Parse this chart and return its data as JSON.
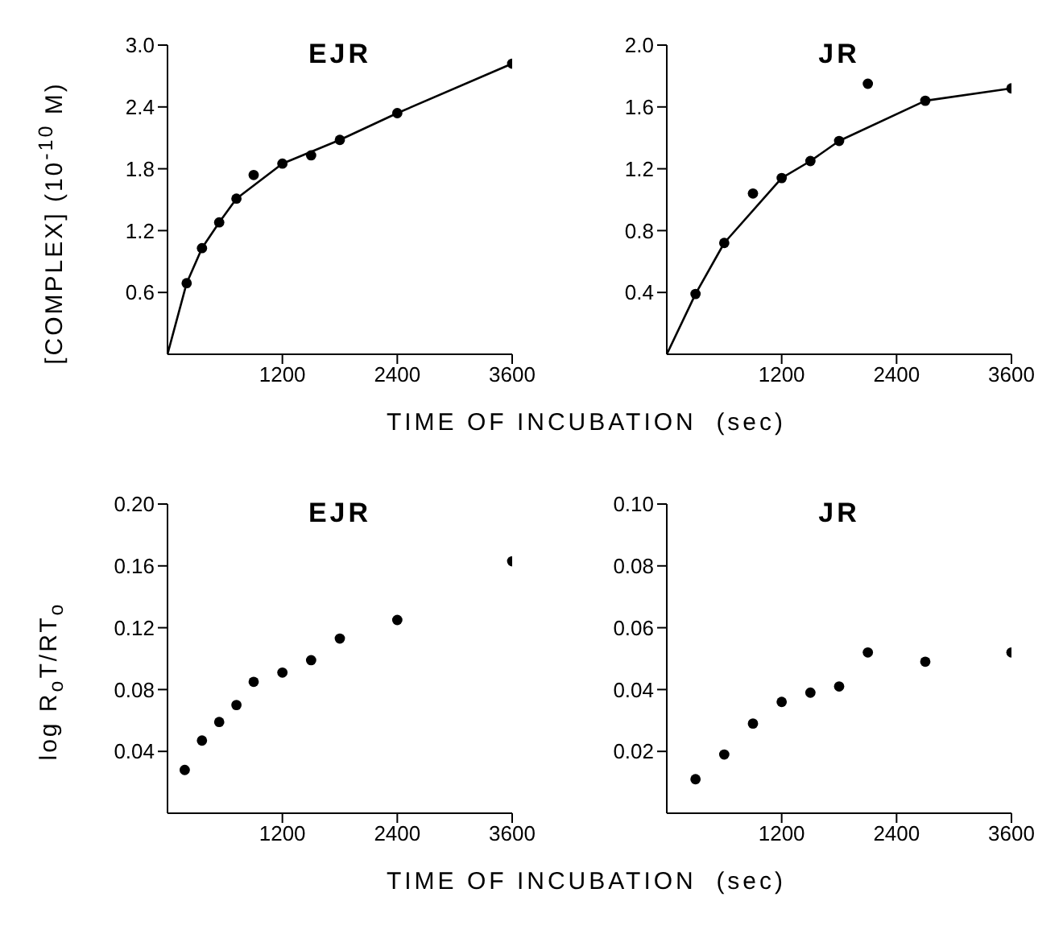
{
  "chart_data": [
    {
      "type": "scatter",
      "title": "EJR",
      "ylabel": "[COMPLEX]  (10$^{-10}$ M)",
      "xlabel": "TIME OF INCUBATION  (sec)",
      "xlim": [
        0,
        3600
      ],
      "xticks": [
        1200,
        2400,
        3600
      ],
      "ylim": [
        0,
        3.0
      ],
      "yticks": [
        0.6,
        1.2,
        1.8,
        2.4,
        {
          "value": 3,
          "label": "3.0"
        }
      ],
      "grid": false,
      "series": [
        {
          "type": "scatter",
          "color": "#000000",
          "marker": "circle",
          "x": [
            200,
            360,
            540,
            720,
            900,
            1200,
            1500,
            1800,
            2400,
            3600
          ],
          "values": [
            0.69,
            1.03,
            1.28,
            1.51,
            1.74,
            1.85,
            1.93,
            2.08,
            2.34,
            2.82
          ]
        },
        {
          "type": "line",
          "color": "#000000",
          "marker": "none",
          "line_style": "solid",
          "x": [
            0,
            200,
            360,
            540,
            720,
            1200,
            1800,
            2400,
            3600
          ],
          "values": [
            0,
            0.69,
            1.03,
            1.28,
            1.51,
            1.85,
            2.08,
            2.34,
            2.82
          ]
        }
      ]
    },
    {
      "type": "scatter",
      "title": "JR",
      "xlim": [
        0,
        3600
      ],
      "xticks": [
        1200,
        2400,
        3600
      ],
      "ylim": [
        0,
        2.0
      ],
      "yticks": [
        0.4,
        0.8,
        1.2,
        1.6,
        {
          "value": 2,
          "label": "2.0"
        }
      ],
      "grid": false,
      "series": [
        {
          "type": "scatter",
          "color": "#000000",
          "marker": "circle",
          "x": [
            300,
            600,
            900,
            1200,
            1500,
            1800,
            2100,
            2700,
            3600
          ],
          "values": [
            0.39,
            0.72,
            1.04,
            1.14,
            1.25,
            1.38,
            1.75,
            1.64,
            1.72
          ]
        },
        {
          "type": "line",
          "color": "#000000",
          "marker": "none",
          "line_style": "solid",
          "x": [
            0,
            300,
            600,
            1200,
            1500,
            1800,
            2700,
            3600
          ],
          "values": [
            0,
            0.39,
            0.72,
            1.14,
            1.25,
            1.38,
            1.64,
            1.72
          ]
        }
      ]
    },
    {
      "type": "scatter",
      "title": "EJR",
      "ylabel": "log R$_{o}$T/RT$_{o}$",
      "xlabel": "TIME OF INCUBATION  (sec)",
      "xlim": [
        0,
        3600
      ],
      "xticks": [
        1200,
        2400,
        3600
      ],
      "ylim": [
        0,
        0.2
      ],
      "yticks": [
        0.04,
        0.08,
        0.12,
        0.16,
        {
          "value": 0.2,
          "label": "0.20"
        }
      ],
      "grid": false,
      "series": [
        {
          "type": "scatter",
          "color": "#000000",
          "marker": "circle",
          "x": [
            180,
            360,
            540,
            720,
            900,
            1200,
            1500,
            1800,
            2400,
            3600
          ],
          "values": [
            0.028,
            0.047,
            0.059,
            0.07,
            0.085,
            0.091,
            0.099,
            0.113,
            0.125,
            0.163
          ]
        }
      ]
    },
    {
      "type": "scatter",
      "title": "JR",
      "xlim": [
        0,
        3600
      ],
      "xticks": [
        1200,
        2400,
        3600
      ],
      "ylim": [
        0,
        0.1
      ],
      "yticks": [
        0.02,
        0.04,
        0.06,
        0.08,
        {
          "value": 0.1,
          "label": "0.10"
        }
      ],
      "grid": false,
      "series": [
        {
          "type": "scatter",
          "color": "#000000",
          "marker": "circle",
          "x": [
            300,
            600,
            900,
            1200,
            1500,
            1800,
            2100,
            2700,
            3600
          ],
          "values": [
            0.011,
            0.019,
            0.029,
            0.036,
            0.039,
            0.041,
            0.052,
            0.049,
            0.052
          ]
        }
      ]
    }
  ]
}
